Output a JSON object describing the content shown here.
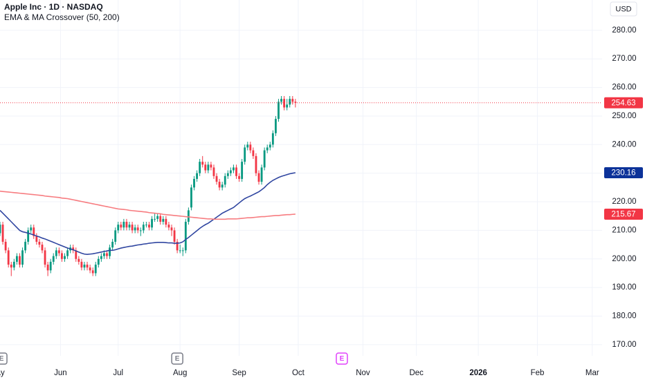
{
  "chart_data": {
    "type": "candlestick",
    "title": "Apple Inc · 1D · NASDAQ",
    "subtitle": "EMA & MA Crossover (50, 200)",
    "currency": "USD",
    "up_color": "#089981",
    "down_color": "#f23645",
    "ohlc": [
      [
        209,
        213,
        208,
        212
      ],
      [
        212,
        213,
        205,
        206
      ],
      [
        206,
        207,
        202,
        203
      ],
      [
        203,
        204,
        197,
        198
      ],
      [
        198,
        199,
        194,
        197
      ],
      [
        197,
        200,
        196,
        199
      ],
      [
        199,
        202,
        198,
        201
      ],
      [
        201,
        202,
        197,
        198
      ],
      [
        198,
        204,
        197,
        203
      ],
      [
        203,
        207,
        202,
        206
      ],
      [
        206,
        211,
        205,
        210
      ],
      [
        210,
        212,
        209,
        211
      ],
      [
        211,
        212,
        207,
        208
      ],
      [
        208,
        209,
        205,
        206
      ],
      [
        206,
        207,
        204,
        205
      ],
      [
        205,
        206,
        202,
        203
      ],
      [
        203,
        204,
        197,
        198
      ],
      [
        198,
        199,
        194,
        196
      ],
      [
        196,
        200,
        195,
        199
      ],
      [
        199,
        202,
        198,
        201
      ],
      [
        201,
        204,
        200,
        203
      ],
      [
        203,
        204,
        201,
        202
      ],
      [
        202,
        203,
        199,
        200
      ],
      [
        200,
        202,
        199,
        201
      ],
      [
        201,
        204,
        200,
        203
      ],
      [
        203,
        205,
        202,
        204
      ],
      [
        204,
        205,
        202,
        203
      ],
      [
        203,
        204,
        199,
        200
      ],
      [
        200,
        201,
        198,
        199
      ],
      [
        199,
        200,
        196,
        197
      ],
      [
        197,
        199,
        196,
        198
      ],
      [
        198,
        199,
        196,
        197
      ],
      [
        197,
        198,
        195,
        196
      ],
      [
        196,
        197,
        194,
        195
      ],
      [
        195,
        199,
        194,
        198
      ],
      [
        198,
        201,
        197,
        200
      ],
      [
        200,
        202,
        199,
        201
      ],
      [
        201,
        203,
        200,
        202
      ],
      [
        202,
        203,
        200,
        201
      ],
      [
        201,
        205,
        200,
        204
      ],
      [
        204,
        207,
        203,
        206
      ],
      [
        206,
        211,
        205,
        210
      ],
      [
        210,
        213,
        209,
        212
      ],
      [
        212,
        213,
        210,
        211
      ],
      [
        211,
        214,
        210,
        213
      ],
      [
        213,
        214,
        210,
        211
      ],
      [
        211,
        213,
        210,
        212
      ],
      [
        212,
        213,
        209,
        210
      ],
      [
        210,
        212,
        209,
        211
      ],
      [
        211,
        212,
        209,
        210
      ],
      [
        210,
        211,
        208,
        210
      ],
      [
        210,
        213,
        209,
        212
      ],
      [
        212,
        213,
        211,
        212
      ],
      [
        212,
        213,
        210,
        211
      ],
      [
        211,
        215,
        210,
        214
      ],
      [
        214,
        216,
        213,
        214
      ],
      [
        214,
        216,
        213,
        215
      ],
      [
        215,
        216,
        212,
        213
      ],
      [
        213,
        215,
        212,
        214
      ],
      [
        214,
        215,
        211,
        212
      ],
      [
        212,
        213,
        210,
        211
      ],
      [
        211,
        212,
        208,
        210
      ],
      [
        210,
        211,
        205,
        206
      ],
      [
        206,
        207,
        202,
        203
      ],
      [
        203,
        205,
        202,
        203
      ],
      [
        203,
        204,
        201,
        203
      ],
      [
        203,
        214,
        202,
        213
      ],
      [
        213,
        218,
        212,
        217
      ],
      [
        218,
        226,
        217,
        225
      ],
      [
        225,
        229,
        224,
        228
      ],
      [
        228,
        231,
        227,
        230
      ],
      [
        230,
        235,
        229,
        234
      ],
      [
        234,
        236,
        232,
        233
      ],
      [
        233,
        234,
        230,
        231
      ],
      [
        231,
        234,
        230,
        233
      ],
      [
        233,
        234,
        231,
        232
      ],
      [
        232,
        233,
        228,
        229
      ],
      [
        229,
        230,
        226,
        227
      ],
      [
        227,
        228,
        224,
        225
      ],
      [
        225,
        227,
        224,
        226
      ],
      [
        226,
        230,
        225,
        229
      ],
      [
        229,
        231,
        228,
        230
      ],
      [
        230,
        232,
        229,
        231
      ],
      [
        231,
        233,
        230,
        232
      ],
      [
        232,
        233,
        228,
        229
      ],
      [
        229,
        230,
        227,
        228
      ],
      [
        228,
        235,
        227,
        234
      ],
      [
        234,
        240,
        233,
        239
      ],
      [
        239,
        241,
        238,
        240
      ],
      [
        240,
        241,
        237,
        238
      ],
      [
        238,
        239,
        235,
        236
      ],
      [
        236,
        237,
        229,
        230
      ],
      [
        230,
        231,
        226,
        227
      ],
      [
        227,
        233,
        226,
        232
      ],
      [
        232,
        239,
        231,
        238
      ],
      [
        238,
        240,
        237,
        239
      ],
      [
        239,
        241,
        238,
        240
      ],
      [
        240,
        245,
        239,
        244
      ],
      [
        244,
        250,
        243,
        249
      ],
      [
        249,
        256,
        248,
        255
      ],
      [
        255,
        257,
        254,
        256
      ],
      [
        256,
        257,
        252,
        253
      ],
      [
        253,
        256,
        252,
        254
      ],
      [
        254,
        257,
        253,
        256
      ],
      [
        256,
        257,
        254,
        255
      ],
      [
        255,
        256,
        253,
        254.63
      ]
    ],
    "lines": [
      {
        "color": "#2f45a0",
        "label_color": "#0c3299",
        "values": [
          217,
          216,
          215,
          214,
          213,
          212,
          211,
          210,
          209.5,
          209.3,
          209,
          208.7,
          208.4,
          208,
          207.7,
          207.3,
          207,
          206.6,
          206.2,
          205.8,
          205.4,
          205,
          204.6,
          204.2,
          203.8,
          203.5,
          203.2,
          202.8,
          202.4,
          202,
          201.7,
          201.6,
          201.7,
          201.8,
          202,
          202.2,
          202.4,
          202.6,
          202.8,
          203,
          203,
          203.2,
          203.5,
          203.8,
          204,
          204.2,
          204.4,
          204.5,
          204.7,
          204.9,
          205,
          205.2,
          205.3,
          205.5,
          205.6,
          205.7,
          205.8,
          205.8,
          205.8,
          205.7,
          205.6,
          205.6,
          205.5,
          205.5,
          205.6,
          206,
          206.8,
          207.5,
          208.3,
          209.1,
          209.9,
          210.7,
          211.4,
          212,
          212.5,
          213.2,
          213.9,
          214.6,
          215.3,
          216,
          216.5,
          217,
          217.5,
          218,
          218.8,
          219.6,
          220.4,
          221.1,
          221.6,
          222,
          222.5,
          223,
          223.5,
          224.2,
          225,
          226,
          226.8,
          227.5,
          228,
          228.5,
          228.9,
          229.2,
          229.5,
          229.8,
          230,
          230.16
        ]
      },
      {
        "color": "#f77c80",
        "label_color": "#f23645",
        "values": [
          223.7,
          223.6,
          223.5,
          223.4,
          223.3,
          223.2,
          223.1,
          223.0,
          222.9,
          222.8,
          222.7,
          222.6,
          222.5,
          222.4,
          222.3,
          222.2,
          222.0,
          221.9,
          221.8,
          221.7,
          221.6,
          221.5,
          221.3,
          221.2,
          221.1,
          220.9,
          220.7,
          220.5,
          220.3,
          220.1,
          219.9,
          219.7,
          219.5,
          219.3,
          219.1,
          218.9,
          218.7,
          218.5,
          218.3,
          218.1,
          217.9,
          217.7,
          217.5,
          217.4,
          217.3,
          217.2,
          217.0,
          216.9,
          216.8,
          216.7,
          216.6,
          216.5,
          216.4,
          216.2,
          216.1,
          216.0,
          215.9,
          215.8,
          215.6,
          215.5,
          215.4,
          215.3,
          215.2,
          215.1,
          215.0,
          214.9,
          214.8,
          214.7,
          214.6,
          214.5,
          214.4,
          214.3,
          214.2,
          214.1,
          214.0,
          214.0,
          213.9,
          213.9,
          213.9,
          213.9,
          213.9,
          214.0,
          214.0,
          214.0,
          214.0,
          214.1,
          214.2,
          214.3,
          214.4,
          214.4,
          214.5,
          214.6,
          214.7,
          214.8,
          214.8,
          214.9,
          215.0,
          215.1,
          215.2,
          215.2,
          215.3,
          215.4,
          215.5,
          215.5,
          215.6,
          215.67
        ]
      }
    ],
    "events": [
      {
        "x": 0.5,
        "label": "E",
        "color": "#787b86"
      },
      {
        "x": 63,
        "label": "E",
        "color": "#787b86"
      },
      {
        "x": 121.5,
        "label": "E",
        "color": "#e040fb"
      }
    ],
    "xlim": [
      0,
      214
    ],
    "xticks": [
      {
        "value": -1,
        "label": "May"
      },
      {
        "value": 21.5,
        "label": "Jun"
      },
      {
        "value": 42,
        "label": "Jul"
      },
      {
        "value": 64,
        "label": "Aug"
      },
      {
        "value": 85,
        "label": "Sep"
      },
      {
        "value": 106,
        "label": "Oct"
      },
      {
        "value": 129,
        "label": "Nov"
      },
      {
        "value": 148,
        "label": "Dec"
      },
      {
        "value": 170,
        "label": "2026"
      },
      {
        "value": 191,
        "label": "Feb"
      },
      {
        "value": 210.5,
        "label": "Mar"
      }
    ],
    "ylim": [
      166.1,
      290.6
    ],
    "yticks": [
      {
        "value": 170,
        "label": "170.00"
      },
      {
        "value": 180,
        "label": "180.00"
      },
      {
        "value": 190,
        "label": "190.00"
      },
      {
        "value": 200,
        "label": "200.00"
      },
      {
        "value": 210,
        "label": "210.00"
      },
      {
        "value": 220,
        "label": "220.00"
      },
      {
        "value": 230,
        "label": "230.00"
      },
      {
        "value": 240,
        "label": "240.00"
      },
      {
        "value": 250,
        "label": "250.00"
      },
      {
        "value": 260,
        "label": "260.00"
      },
      {
        "value": 270,
        "label": "270.00"
      },
      {
        "value": 280,
        "label": "280.00"
      }
    ],
    "grid": true
  }
}
